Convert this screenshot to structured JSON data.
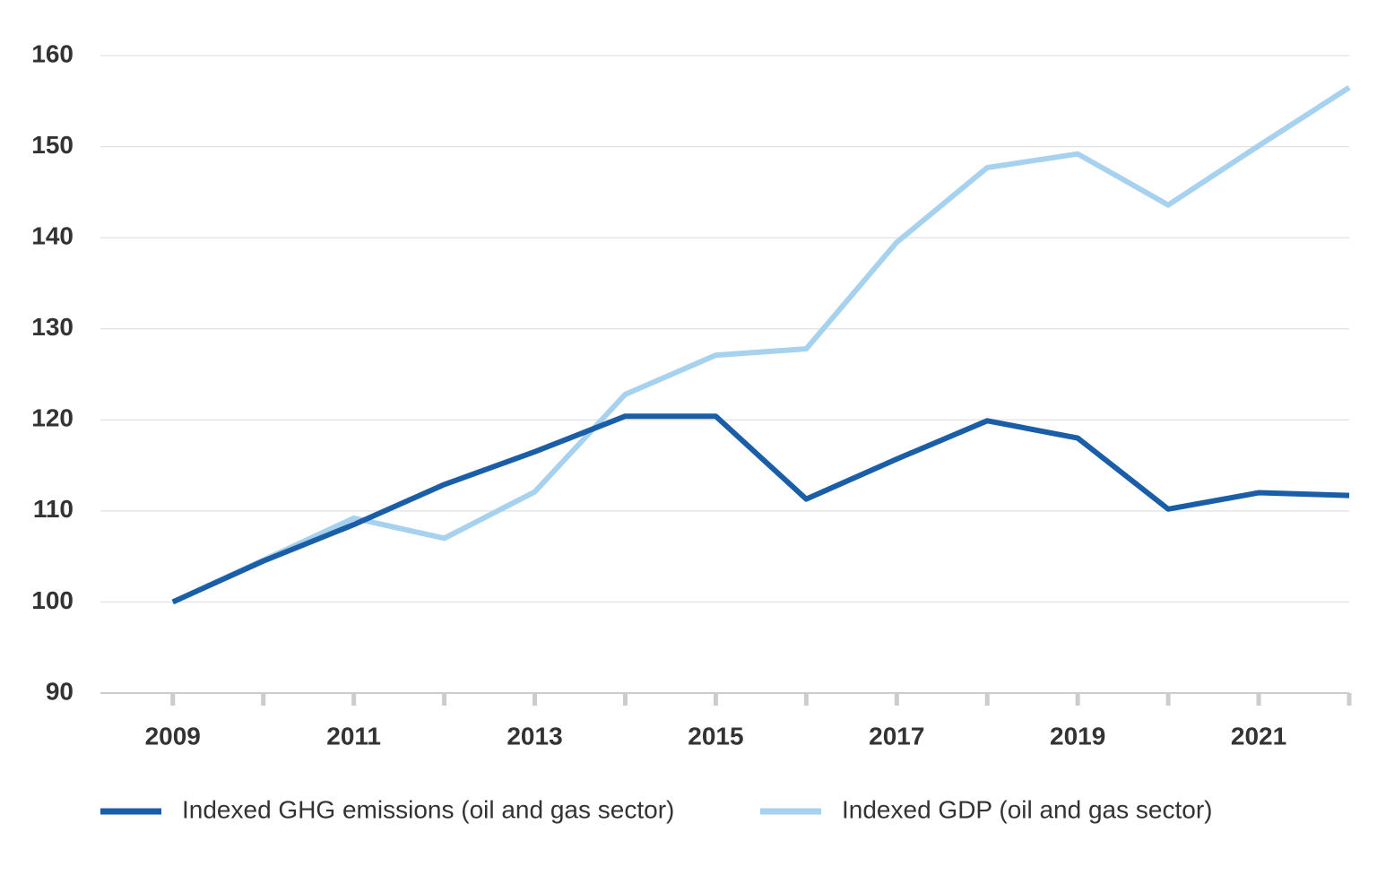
{
  "chart_data": {
    "type": "line",
    "x": [
      2009,
      2010,
      2011,
      2012,
      2013,
      2014,
      2015,
      2016,
      2017,
      2018,
      2019,
      2020,
      2021,
      2022
    ],
    "series": [
      {
        "name": "Indexed GHG emissions (oil and gas sector)",
        "color": "#1a5ea8",
        "values": [
          100,
          104.5,
          108.5,
          112.9,
          116.5,
          120.4,
          120.4,
          111.3,
          115.7,
          119.9,
          118,
          110.2,
          112,
          111.7
        ]
      },
      {
        "name": "Indexed GDP (oil and gas sector)",
        "color": "#a6d1ef",
        "values": [
          100,
          104.6,
          109.2,
          107,
          112.1,
          122.8,
          127.1,
          127.8,
          139.5,
          147.7,
          149.2,
          143.6,
          150.1,
          156.5
        ]
      }
    ],
    "xlim": [
      2008.2,
      2022
    ],
    "xticks": [
      2009,
      2011,
      2013,
      2015,
      2017,
      2019,
      2021
    ],
    "ylim": [
      90,
      160
    ],
    "yticks": [
      90,
      100,
      110,
      120,
      130,
      140,
      150,
      160
    ],
    "grid": true,
    "legend": "bottom"
  }
}
